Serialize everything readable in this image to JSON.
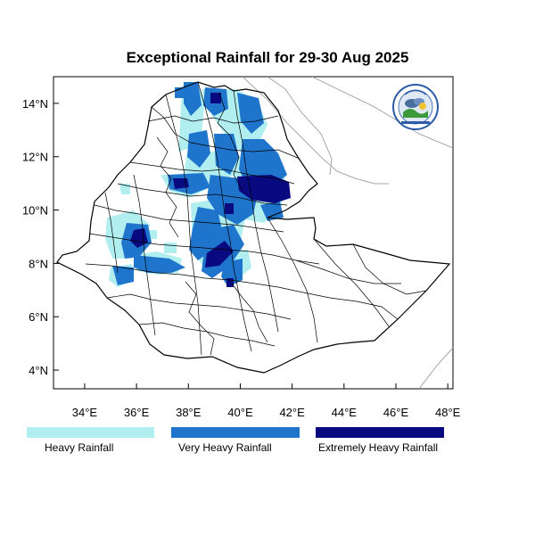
{
  "map": {
    "title": "Exceptional Rainfall for 29-30 Aug 2025",
    "lon_range": [
      32.8,
      48.2
    ],
    "lat_range": [
      3.3,
      15.0
    ],
    "x_ticks": [
      {
        "lon": 34,
        "label": "34°E"
      },
      {
        "lon": 36,
        "label": "36°E"
      },
      {
        "lon": 38,
        "label": "38°E"
      },
      {
        "lon": 40,
        "label": "40°E"
      },
      {
        "lon": 42,
        "label": "42°E"
      },
      {
        "lon": 44,
        "label": "44°E"
      },
      {
        "lon": 46,
        "label": "46°E"
      },
      {
        "lon": 48,
        "label": "48°E"
      }
    ],
    "y_ticks": [
      {
        "lat": 4,
        "label": "4°N"
      },
      {
        "lat": 6,
        "label": "6°N"
      },
      {
        "lat": 8,
        "label": "8°N"
      },
      {
        "lat": 10,
        "label": "10°N"
      },
      {
        "lat": 12,
        "label": "12°N"
      },
      {
        "lat": 14,
        "label": "14°N"
      }
    ],
    "colors": {
      "heavy": "#b0eef0",
      "very_heavy": "#1f74cc",
      "extreme": "#0a0a80",
      "border": "#000000",
      "neighbor": "#a8a8a8"
    },
    "logo_icon": "ema-logo-icon"
  },
  "legend": [
    {
      "label": "Heavy Rainfall",
      "color": "#b0eef0"
    },
    {
      "label": "Very Heavy Rainfall",
      "color": "#1f74cc"
    },
    {
      "label": "Extremely Heavy Rainfall",
      "color": "#0a0a80"
    }
  ]
}
